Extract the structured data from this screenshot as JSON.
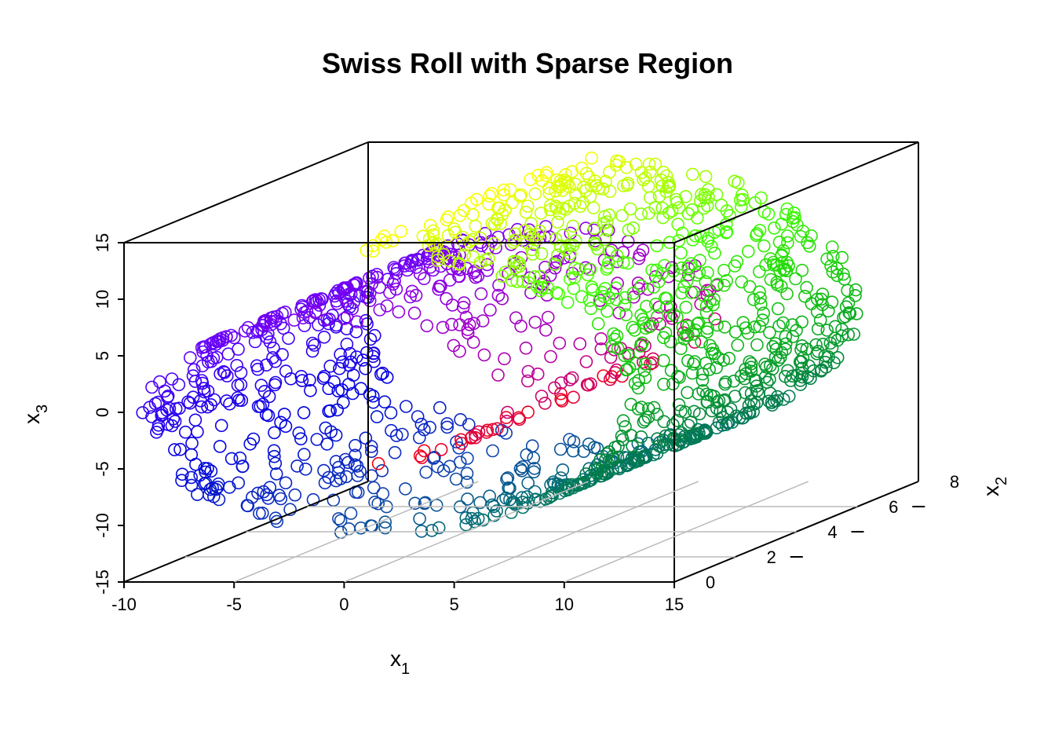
{
  "chart_data": {
    "type": "scatter",
    "title": "Swiss Roll with Sparse Region",
    "xlabel": "x",
    "xlabel_sub": "1",
    "ylabel": "x",
    "ylabel_sub": "3",
    "zlabel": "x",
    "zlabel_sub": "2",
    "x_ticks": [
      "-10",
      "-5",
      "0",
      "5",
      "10",
      "15"
    ],
    "x_tick_values": [
      -10,
      -5,
      0,
      5,
      10,
      15
    ],
    "y_ticks": [
      "-15",
      "-10",
      "-5",
      "0",
      "5",
      "10",
      "15"
    ],
    "y_tick_values": [
      -15,
      -10,
      -5,
      0,
      5,
      10,
      15
    ],
    "z_ticks": [
      "0",
      "2",
      "4",
      "6",
      "8"
    ],
    "z_tick_values": [
      0,
      2,
      4,
      6,
      8
    ],
    "xlim": [
      -10,
      15
    ],
    "ylim": [
      -15,
      15
    ],
    "zlim": [
      0,
      8
    ],
    "grid": "on floor along x2",
    "marker": "open circle",
    "color_scale": "rainbow by position along roll: red (inner) → magenta → purple → blue → teal → green → yellow-green → yellow (outer)",
    "colors": {
      "red": "#ff0000",
      "crimson": "#e0003c",
      "magenta": "#b000b0",
      "purple": "#8a00e6",
      "violet": "#5a00ff",
      "blue": "#0000e0",
      "navy": "#1040b0",
      "teal": "#007070",
      "sea_green": "#008040",
      "green": "#10c010",
      "lime": "#40ff00",
      "yellow_green": "#b0ff00",
      "yellow": "#ffff00"
    },
    "notes_point_count": 1500
  }
}
